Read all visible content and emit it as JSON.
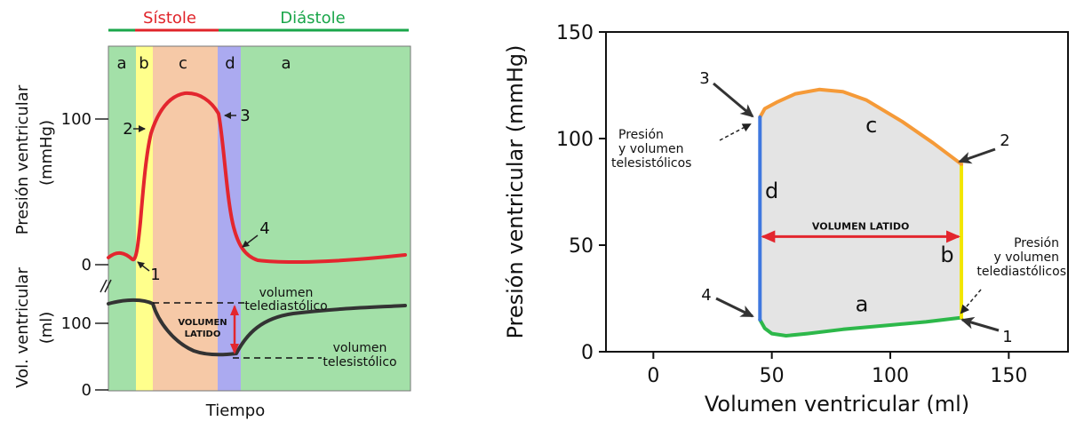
{
  "left_chart": {
    "phase_labels": {
      "systole": "Sístole",
      "diastole": "Diástole"
    },
    "phase_colors": {
      "systole": "#e0242a",
      "diastole": "#1aa64a"
    },
    "band_labels": [
      "a",
      "b",
      "c",
      "d",
      "a"
    ],
    "band_colors": {
      "a": "#a3e0a8",
      "b": "#ffff8c",
      "c": "#f6c9a7",
      "d": "#abaaf0"
    },
    "pressure_axis": {
      "label_line1": "Presión ventricular",
      "label_line2": "(mmHg)",
      "ticks": [
        "0",
        "100"
      ]
    },
    "volume_axis": {
      "label_line1": "Vol. ventricular",
      "label_line2": "(ml)",
      "ticks": [
        "0",
        "100"
      ]
    },
    "xlabel": "Tiempo",
    "point_labels": [
      "1",
      "2",
      "3",
      "4"
    ],
    "annotations": {
      "edv_line1": "volumen",
      "edv_line2": "telediastólico",
      "esv_line1": "volumen",
      "esv_line2": "telesistólico",
      "stroke_line1": "VOLUMEN",
      "stroke_line2": "LATIDO"
    },
    "curve_colors": {
      "pressure": "#e3262e",
      "volume": "#333333",
      "arrow": "#e3262e"
    }
  },
  "chart_data": {
    "type": "line",
    "title": "",
    "xlabel": "Volumen ventricular (ml)",
    "ylabel": "Presión ventricular (mmHg)",
    "xlim": [
      -20,
      175
    ],
    "ylim": [
      0,
      150
    ],
    "xticks": [
      "0",
      "50",
      "100",
      "150"
    ],
    "yticks": [
      "0",
      "50",
      "100",
      "150"
    ],
    "grid": false,
    "series": [
      {
        "name": "a",
        "color": "#2db84a",
        "x": [
          45,
          47,
          50,
          56,
          65,
          80,
          100,
          115,
          130
        ],
        "y": [
          15,
          11,
          8.5,
          7.5,
          8.5,
          10.5,
          12.5,
          14,
          16
        ]
      },
      {
        "name": "b",
        "color": "#f2e600",
        "x": [
          130,
          130
        ],
        "y": [
          16,
          88
        ]
      },
      {
        "name": "c",
        "color": "#f59a38",
        "x": [
          130,
          118,
          105,
          90,
          80,
          70,
          60,
          52,
          47,
          45
        ],
        "y": [
          88,
          98,
          108,
          118,
          122,
          123,
          121,
          117,
          114,
          110
        ]
      },
      {
        "name": "d",
        "color": "#3f78df",
        "x": [
          45,
          45
        ],
        "y": [
          110,
          15
        ]
      }
    ],
    "fill_color": "#e4e4e4",
    "segment_labels": [
      {
        "text": "a",
        "x": 88,
        "y": 19
      },
      {
        "text": "b",
        "x": 124,
        "y": 42
      },
      {
        "text": "c",
        "x": 92,
        "y": 103
      },
      {
        "text": "d",
        "x": 50,
        "y": 72
      }
    ],
    "stroke_volume": {
      "text": "VOLUMEN LATIDO",
      "x_from": 45,
      "x_to": 130,
      "y": 54,
      "color": "#e3262e"
    },
    "point_labels": [
      {
        "text": "1",
        "x": 130,
        "y": 16
      },
      {
        "text": "2",
        "x": 130,
        "y": 88
      },
      {
        "text": "3",
        "x": 45,
        "y": 110
      },
      {
        "text": "4",
        "x": 45,
        "y": 15
      }
    ],
    "annotations": {
      "es_line1": "Presión",
      "es_line2": "y volumen",
      "es_line3": "telesistólicos",
      "ed_line1": "Presión",
      "ed_line2": "y volumen",
      "ed_line3": "telediastólicos"
    }
  }
}
